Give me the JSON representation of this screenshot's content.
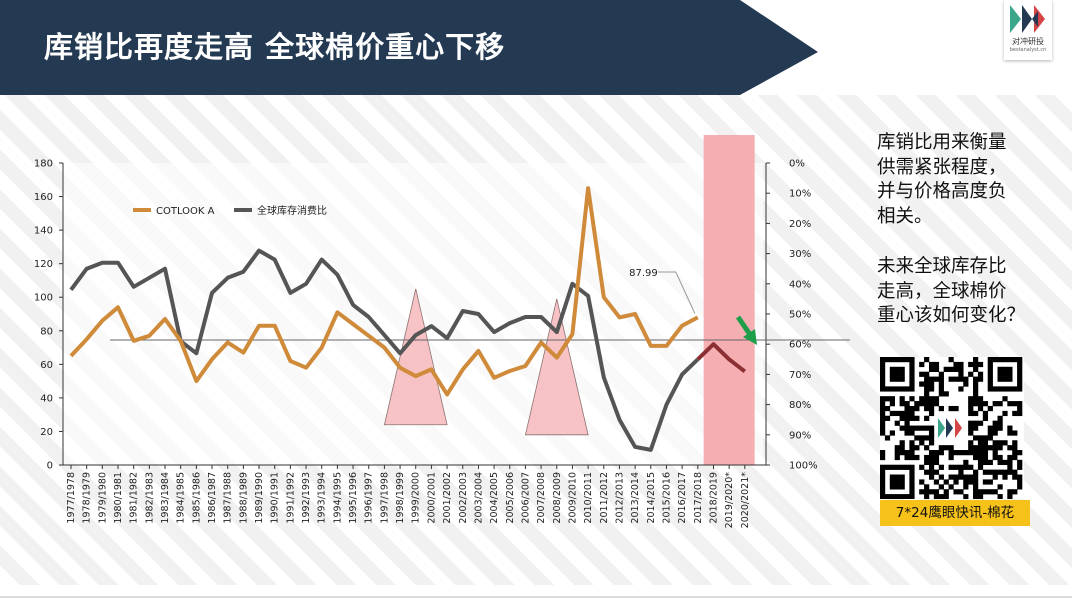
{
  "header": {
    "title": "库销比再度走高 全球棉价重心下移",
    "bar_color": "#243a53",
    "logo_cn": "对冲研投",
    "logo_en": "bestanalyst.cn"
  },
  "side_note": {
    "para1": [
      "库销比用来衡量",
      "供需紧张程度，",
      "并与价格高度负",
      "相关。"
    ],
    "para2": [
      "未来全球库存比",
      "走高，全球棉价",
      "重心该如何变化？"
    ]
  },
  "qr": {
    "caption": "7*24鹰眼快讯-棉花",
    "caption_color": "#f6c219"
  },
  "chart_data": {
    "type": "line",
    "categories": [
      "1977/1978",
      "1978/1979",
      "1979/1980",
      "1980/1981",
      "1981/1982",
      "1982/1983",
      "1983/1984",
      "1984/1985",
      "1985/1986",
      "1986/1987",
      "1987/1988",
      "1988/1989",
      "1989/1990",
      "1990/1991",
      "1991/1992",
      "1992/1993",
      "1993/1994",
      "1994/1995",
      "1995/1996",
      "1996/1997",
      "1997/1998",
      "1998/1999",
      "1999/2000",
      "2000/2001",
      "2001/2002",
      "2002/2003",
      "2003/2004",
      "2004/2005",
      "2005/2006",
      "2006/2007",
      "2007/2008",
      "2008/2009",
      "2009/2010",
      "2010/2011",
      "2011/2012",
      "2012/2013",
      "2013/2014",
      "2014/2015",
      "2015/2016",
      "2016/2017",
      "2017/2018",
      "2018/2019",
      "2019/2020*",
      "2020/2021*"
    ],
    "left_axis": {
      "ticks": [
        "0",
        "20",
        "40",
        "60",
        "80",
        "100",
        "120",
        "140",
        "160",
        "180"
      ],
      "ylim": [
        0,
        180
      ]
    },
    "right_axis": {
      "ticks": [
        "0%",
        "10%",
        "20%",
        "30%",
        "40%",
        "50%",
        "60%",
        "70%",
        "80%",
        "90%",
        "100%"
      ],
      "ylim": [
        0,
        100
      ],
      "reversed": true
    },
    "series": [
      {
        "name": "COTLOOK A",
        "axis": "left",
        "color": "#cf8a3a",
        "values": [
          65,
          75,
          86,
          94,
          74,
          77,
          87,
          74,
          50,
          63,
          73,
          67,
          83,
          83,
          62,
          58,
          70,
          91,
          84,
          77,
          70,
          58,
          53,
          57,
          42,
          57,
          68,
          52,
          56,
          59,
          73,
          64,
          78,
          165,
          100,
          88,
          90,
          71,
          71,
          83,
          88,
          null,
          null,
          null
        ]
      },
      {
        "name": "全球库存消费比",
        "axis": "right",
        "color": "#555555",
        "values": [
          42,
          35,
          33,
          33,
          41,
          38,
          35,
          59,
          63,
          43,
          38,
          36,
          29,
          32,
          43,
          40,
          32,
          37,
          47,
          51,
          57,
          63,
          57,
          54,
          58,
          49,
          50,
          56,
          53,
          51,
          51,
          56,
          40,
          44,
          71,
          85,
          94,
          95,
          80,
          70,
          65,
          60,
          65,
          69
        ]
      }
    ],
    "extra_segment": {
      "name": "red-forecast",
      "color": "#8b2f33",
      "axis": "right",
      "from_index": 40,
      "values": [
        65,
        60,
        65,
        69
      ]
    },
    "annotation": {
      "label": "87.99",
      "index": 40
    },
    "reference_line": {
      "value": 74.5,
      "axis": "left"
    },
    "triangles": [
      {
        "apex_category": "1999/2000",
        "start": "1997/1998",
        "end": "2001/2002",
        "peak": 105,
        "base": 24,
        "color": "#f7b9bc"
      },
      {
        "apex_category": "2008/2009",
        "start": "2006/2007",
        "end": "2010/2011",
        "peak": 99,
        "base": 18,
        "color": "#f7b9bc"
      }
    ],
    "highlight": {
      "from": "2018/2019",
      "to": "2020/2021*",
      "color": "#f4a6ab"
    },
    "arrow_color": "#1f9e4a",
    "legend_position": "top-left",
    "grid": false
  }
}
